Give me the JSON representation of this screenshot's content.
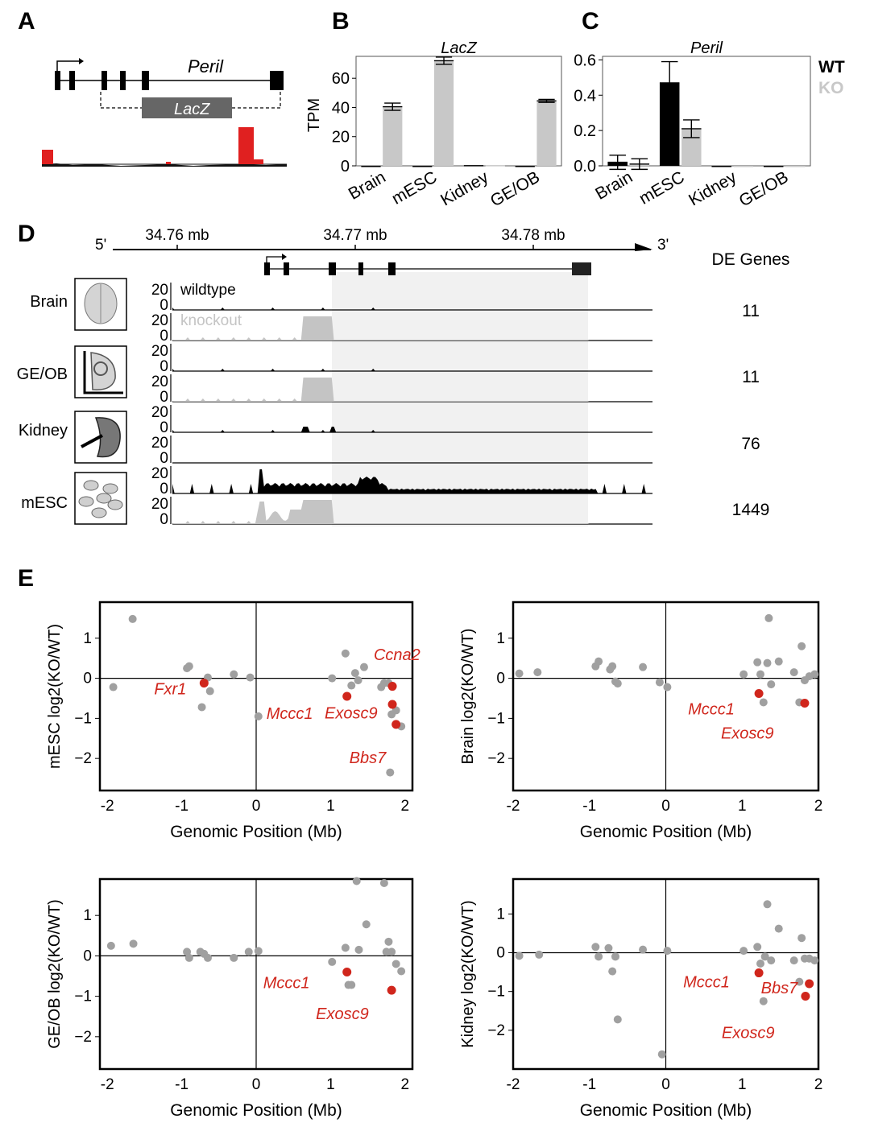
{
  "colors": {
    "wt": "#000000",
    "ko": "#c8c8c8",
    "lacz_box": "#666666",
    "highlight": "#d0261c",
    "grey_point": "#a0a0a0",
    "shade": "#f1f1f1"
  },
  "panels": {
    "A": {
      "letter": "A",
      "gene": "Peril",
      "cassette": "LacZ"
    },
    "B": {
      "letter": "B"
    },
    "C": {
      "letter": "C"
    },
    "D": {
      "letter": "D"
    },
    "E": {
      "letter": "E"
    }
  },
  "chart_data": [
    {
      "id": "B",
      "type": "bar",
      "title": "LacZ",
      "ylabel": "TPM",
      "categories": [
        "Brain",
        "mESC",
        "Kidney",
        "GE/OB"
      ],
      "yticks": [
        0,
        20,
        40,
        60
      ],
      "ylim": [
        0,
        75
      ],
      "series": [
        {
          "values": [
            0,
            0,
            0.5,
            0
          ],
          "errors": [
            0,
            0,
            0,
            0
          ]
        },
        {
          "values": [
            40.5,
            72,
            0.5,
            44.5
          ],
          "errors": [
            2.5,
            2.5,
            0,
            1
          ]
        }
      ]
    },
    {
      "id": "C",
      "type": "bar",
      "title": "Peril",
      "categories": [
        "Brain",
        "mESC",
        "Kidney",
        "GE/OB"
      ],
      "yticks": [
        "0.0",
        "0.2",
        "0.4",
        "0.6"
      ],
      "ylim": [
        0,
        0.62
      ],
      "legend": [
        "WT",
        "KO"
      ],
      "series": [
        {
          "name": "WT",
          "values": [
            0.02,
            0.47,
            0,
            0
          ],
          "errors": [
            0.04,
            0.12,
            0,
            0
          ]
        },
        {
          "name": "KO",
          "values": [
            0.01,
            0.21,
            0,
            0
          ],
          "errors": [
            0.03,
            0.05,
            0,
            0
          ]
        }
      ]
    },
    {
      "id": "D",
      "type": "area",
      "axis": {
        "left_label": "5'",
        "right_label": "3'",
        "ticks": [
          "34.76 mb",
          "34.77 mb",
          "34.78 mb"
        ]
      },
      "track_labels": {
        "wildtype": "wildtype",
        "knockout": "knockout"
      },
      "scale": {
        "top": "20",
        "bottom": "0"
      },
      "de_header": "DE Genes",
      "tissues": [
        {
          "name": "Brain",
          "de_genes": "11"
        },
        {
          "name": "GE/OB",
          "de_genes": "11"
        },
        {
          "name": "Kidney",
          "de_genes": "76"
        },
        {
          "name": "mESC",
          "de_genes": "1449"
        }
      ]
    },
    {
      "id": "E1",
      "type": "scatter",
      "ylabel": "mESC log2(KO/WT)",
      "xlabel": "Genomic Position (Mb)",
      "xticks": [
        "-2",
        "-1",
        "0",
        "1",
        "2"
      ],
      "yticks": [
        "1",
        "0",
        "−1",
        "−2"
      ],
      "xlim": [
        -2.1,
        2.1
      ],
      "ylim": [
        -2.8,
        1.9
      ],
      "points": [
        [
          -1.92,
          -0.22
        ],
        [
          -1.66,
          1.48
        ],
        [
          -0.93,
          0.25
        ],
        [
          -0.9,
          0.3
        ],
        [
          -0.73,
          -0.72
        ],
        [
          -0.65,
          0.02
        ],
        [
          -0.62,
          -0.32
        ],
        [
          -0.3,
          0.1
        ],
        [
          -0.08,
          0.02
        ],
        [
          0.03,
          -0.95
        ],
        [
          1.02,
          0.0
        ],
        [
          1.2,
          0.62
        ],
        [
          1.28,
          -0.18
        ],
        [
          1.33,
          0.13
        ],
        [
          1.37,
          -0.05
        ],
        [
          1.45,
          0.28
        ],
        [
          1.68,
          -0.22
        ],
        [
          1.72,
          -0.12
        ],
        [
          1.78,
          -0.12
        ],
        [
          1.8,
          -2.35
        ],
        [
          1.82,
          -0.9
        ],
        [
          1.88,
          -0.8
        ],
        [
          1.95,
          -1.2
        ]
      ],
      "highlights": [
        {
          "x": -0.7,
          "y": -0.12,
          "label": "Fxr1"
        },
        {
          "x": 1.22,
          "y": -0.45,
          "label": "Mccc1"
        },
        {
          "x": 1.83,
          "y": -0.2,
          "label": ""
        },
        {
          "x": 1.83,
          "y": -0.65,
          "label": ""
        },
        {
          "x": 1.88,
          "y": -1.15,
          "label": "Bbs7"
        }
      ],
      "extra_labels": [
        {
          "text": "Ccna2",
          "x": 1.58,
          "y": 0.45
        },
        {
          "text": "Exosc9",
          "x": 0.92,
          "y": -1.0
        }
      ]
    },
    {
      "id": "E2",
      "type": "scatter",
      "ylabel": "Brain log2(KO/WT)",
      "xlabel": "Genomic Position (Mb)",
      "xticks": [
        "-2",
        "-1",
        "0",
        "1",
        "2"
      ],
      "yticks": [
        "1",
        "0",
        "−1",
        "−2"
      ],
      "xlim": [
        -2.0,
        2.0
      ],
      "ylim": [
        -2.8,
        1.9
      ],
      "points": [
        [
          -1.92,
          0.12
        ],
        [
          -1.68,
          0.15
        ],
        [
          -0.92,
          0.3
        ],
        [
          -0.88,
          0.42
        ],
        [
          -0.73,
          0.22
        ],
        [
          -0.7,
          0.3
        ],
        [
          -0.66,
          -0.08
        ],
        [
          -0.63,
          -0.13
        ],
        [
          -0.3,
          0.28
        ],
        [
          -0.08,
          -0.1
        ],
        [
          0.02,
          -0.22
        ],
        [
          1.02,
          0.1
        ],
        [
          1.2,
          0.4
        ],
        [
          1.24,
          0.1
        ],
        [
          1.28,
          -0.6
        ],
        [
          1.33,
          0.38
        ],
        [
          1.35,
          1.5
        ],
        [
          1.38,
          -0.15
        ],
        [
          1.48,
          0.42
        ],
        [
          1.68,
          0.15
        ],
        [
          1.75,
          -0.6
        ],
        [
          1.78,
          0.8
        ],
        [
          1.82,
          -0.05
        ],
        [
          1.88,
          0.05
        ],
        [
          1.95,
          0.1
        ]
      ],
      "highlights": [
        {
          "x": 1.22,
          "y": -0.38,
          "label": "Mccc1"
        },
        {
          "x": 1.82,
          "y": -0.62,
          "label": "Exosc9"
        }
      ]
    },
    {
      "id": "E3",
      "type": "scatter",
      "ylabel": "GE/OB log2(KO/WT)",
      "xlabel": "Genomic Position (Mb)",
      "xticks": [
        "-2",
        "-1",
        "0",
        "1",
        "2"
      ],
      "yticks": [
        "1",
        "0",
        "−1",
        "−2"
      ],
      "xlim": [
        -2.1,
        2.1
      ],
      "ylim": [
        -2.8,
        1.9
      ],
      "points": [
        [
          -1.95,
          0.25
        ],
        [
          -1.65,
          0.3
        ],
        [
          -0.93,
          0.1
        ],
        [
          -0.9,
          -0.05
        ],
        [
          -0.75,
          0.1
        ],
        [
          -0.7,
          0.05
        ],
        [
          -0.65,
          -0.05
        ],
        [
          -0.3,
          -0.05
        ],
        [
          -0.1,
          0.1
        ],
        [
          0.03,
          0.12
        ],
        [
          1.02,
          -0.15
        ],
        [
          1.2,
          0.2
        ],
        [
          1.24,
          -0.72
        ],
        [
          1.28,
          -0.72
        ],
        [
          1.35,
          1.85
        ],
        [
          1.38,
          0.15
        ],
        [
          1.48,
          0.78
        ],
        [
          1.72,
          1.8
        ],
        [
          1.75,
          0.1
        ],
        [
          1.78,
          0.35
        ],
        [
          1.82,
          0.1
        ],
        [
          1.88,
          -0.2
        ],
        [
          1.95,
          -0.38
        ]
      ],
      "highlights": [
        {
          "x": 1.22,
          "y": -0.4,
          "label": "Mccc1"
        },
        {
          "x": 1.82,
          "y": -0.85,
          "label": "Exosc9"
        }
      ]
    },
    {
      "id": "E4",
      "type": "scatter",
      "ylabel": "Kidney log2(KO/WT)",
      "xlabel": "Genomic Position (Mb)",
      "xticks": [
        "-2",
        "-1",
        "0",
        "1",
        "2"
      ],
      "yticks": [
        "1",
        "0",
        "−1",
        "−2"
      ],
      "xlim": [
        -2.0,
        2.0
      ],
      "ylim": [
        -3.0,
        1.9
      ],
      "points": [
        [
          -1.92,
          -0.08
        ],
        [
          -1.66,
          -0.05
        ],
        [
          -0.92,
          0.15
        ],
        [
          -0.88,
          -0.1
        ],
        [
          -0.75,
          0.12
        ],
        [
          -0.7,
          -0.48
        ],
        [
          -0.66,
          -0.1
        ],
        [
          -0.63,
          -1.72
        ],
        [
          -0.3,
          0.08
        ],
        [
          -0.05,
          -2.62
        ],
        [
          0.02,
          0.05
        ],
        [
          1.02,
          0.05
        ],
        [
          1.2,
          0.15
        ],
        [
          1.24,
          -0.28
        ],
        [
          1.28,
          -1.25
        ],
        [
          1.3,
          -0.1
        ],
        [
          1.33,
          1.25
        ],
        [
          1.38,
          -0.2
        ],
        [
          1.48,
          0.62
        ],
        [
          1.68,
          -0.2
        ],
        [
          1.75,
          -0.75
        ],
        [
          1.78,
          0.38
        ],
        [
          1.82,
          -0.15
        ],
        [
          1.88,
          -0.15
        ],
        [
          1.95,
          -0.2
        ]
      ],
      "highlights": [
        {
          "x": 1.22,
          "y": -0.52,
          "label": "Mccc1"
        },
        {
          "x": 1.88,
          "y": -0.8,
          "label": "Bbs7"
        },
        {
          "x": 1.83,
          "y": -1.12,
          "label": "Exosc9"
        }
      ]
    }
  ]
}
